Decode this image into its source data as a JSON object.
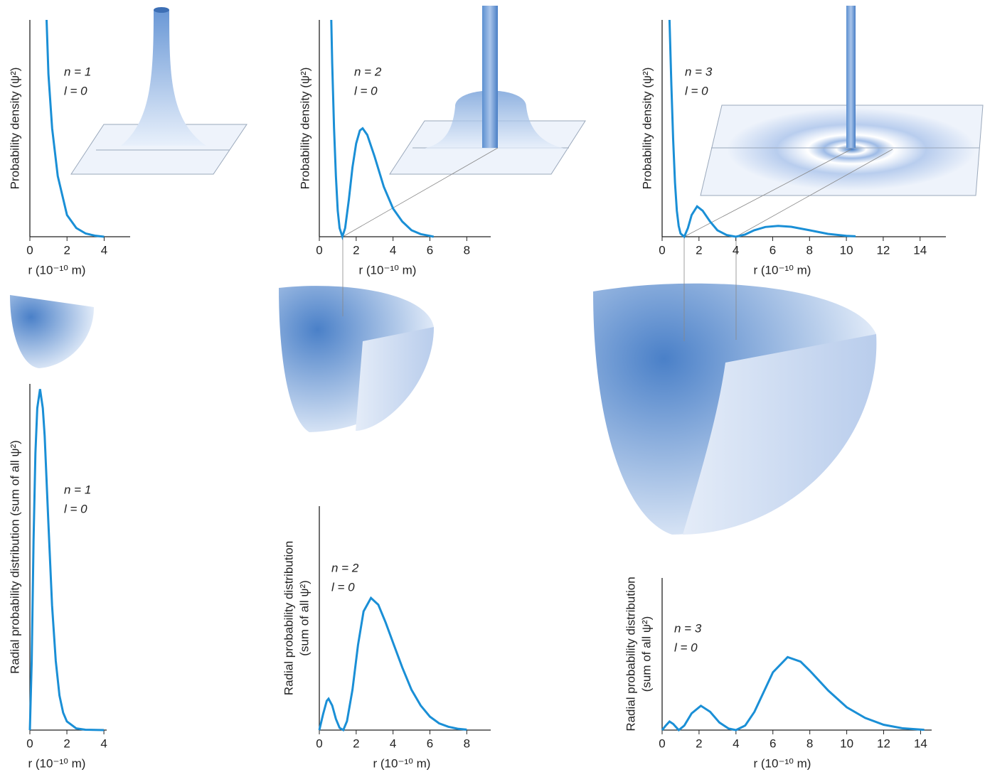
{
  "chart_data": [
    {
      "type": "line",
      "ylabel": [
        "Probability density (ψ²)"
      ],
      "xlabel": "r (10⁻¹⁰ m)",
      "annotations": [
        "n = 1",
        "l = 0"
      ],
      "color": "#1a8fd6",
      "x": [
        0.9,
        1.0,
        1.2,
        1.5,
        2.0,
        2.5,
        3.0,
        3.5,
        4.0
      ],
      "values": [
        1.0,
        0.75,
        0.5,
        0.28,
        0.1,
        0.04,
        0.015,
        0.005,
        0
      ],
      "xlim": [
        0,
        5.4
      ],
      "ylim": [
        0,
        1
      ],
      "xticks": [
        0,
        2,
        4
      ]
    },
    {
      "type": "line",
      "ylabel": [
        "Probability density (ψ²)"
      ],
      "xlabel": "r (10⁻¹⁰ m)",
      "annotations": [
        "n = 2",
        "l = 0"
      ],
      "color": "#1a8fd6",
      "x": [
        0.65,
        0.7,
        0.8,
        0.9,
        1.0,
        1.1,
        1.25,
        1.4,
        1.6,
        1.8,
        2.0,
        2.2,
        2.35,
        2.6,
        3.0,
        3.5,
        4.0,
        4.5,
        5.0,
        5.5,
        6.0,
        6.2
      ],
      "values": [
        1.0,
        0.8,
        0.5,
        0.28,
        0.12,
        0.04,
        0,
        0.04,
        0.17,
        0.32,
        0.43,
        0.49,
        0.5,
        0.47,
        0.37,
        0.23,
        0.13,
        0.07,
        0.03,
        0.012,
        0.004,
        0
      ],
      "xlim": [
        0,
        9.3
      ],
      "ylim": [
        0,
        1
      ],
      "xticks": [
        0,
        2,
        4,
        6,
        8
      ]
    },
    {
      "type": "line",
      "ylabel": [
        "Probability density (ψ²)"
      ],
      "xlabel": "r (10⁻¹⁰ m)",
      "annotations": [
        "n = 3",
        "l = 0"
      ],
      "color": "#1a8fd6",
      "x": [
        0.4,
        0.5,
        0.6,
        0.7,
        0.8,
        0.9,
        1.0,
        1.2,
        1.4,
        1.6,
        1.9,
        2.2,
        2.6,
        3.0,
        3.5,
        4.0,
        4.5,
        5.0,
        5.6,
        6.3,
        7.0,
        8.0,
        9.0,
        10.0,
        10.5
      ],
      "values": [
        1.0,
        0.7,
        0.45,
        0.25,
        0.12,
        0.05,
        0.015,
        0,
        0.04,
        0.1,
        0.14,
        0.12,
        0.07,
        0.03,
        0.008,
        0,
        0.01,
        0.03,
        0.045,
        0.05,
        0.046,
        0.03,
        0.013,
        0.004,
        0.002
      ],
      "xlim": [
        0,
        15.4
      ],
      "ylim": [
        0,
        1
      ],
      "xticks": [
        0,
        2,
        4,
        6,
        8,
        10,
        12,
        14
      ]
    },
    {
      "type": "line",
      "ylabel": [
        "Radial probability distribution (sum of all ψ²)"
      ],
      "xlabel": "r (10⁻¹⁰ m)",
      "annotations": [
        "n = 1",
        "l = 0"
      ],
      "color": "#1a8fd6",
      "x": [
        0,
        0.1,
        0.2,
        0.3,
        0.4,
        0.55,
        0.7,
        0.8,
        1.0,
        1.2,
        1.4,
        1.6,
        1.8,
        2.0,
        2.5,
        3.0,
        4.0
      ],
      "values": [
        0,
        0.2,
        0.55,
        0.8,
        0.93,
        0.985,
        0.93,
        0.85,
        0.6,
        0.36,
        0.2,
        0.1,
        0.05,
        0.025,
        0.005,
        0.001,
        0
      ],
      "xlim": [
        0,
        4.15
      ],
      "ylim": [
        0,
        1
      ],
      "xticks": [
        0,
        2,
        4
      ]
    },
    {
      "type": "line",
      "ylabel": [
        "Radial probability distribution",
        "(sum of all ψ²)"
      ],
      "xlabel": "r (10⁻¹⁰ m)",
      "annotations": [
        "n = 2",
        "l = 0"
      ],
      "color": "#1a8fd6",
      "x": [
        0,
        0.2,
        0.4,
        0.5,
        0.7,
        0.9,
        1.1,
        1.3,
        1.5,
        1.8,
        2.1,
        2.4,
        2.8,
        3.2,
        3.6,
        4.0,
        4.5,
        5.0,
        5.5,
        6.0,
        6.5,
        7.0,
        7.5,
        8.0
      ],
      "values": [
        0,
        0.07,
        0.13,
        0.14,
        0.11,
        0.05,
        0.01,
        0,
        0.04,
        0.18,
        0.38,
        0.53,
        0.59,
        0.56,
        0.48,
        0.39,
        0.28,
        0.18,
        0.11,
        0.06,
        0.03,
        0.015,
        0.006,
        0.002
      ],
      "xlim": [
        0,
        9.3
      ],
      "ylim": [
        0,
        1
      ],
      "xticks": [
        0,
        2,
        4,
        6,
        8
      ]
    },
    {
      "type": "line",
      "ylabel": [
        "Radial probability distribution",
        "(sum of all ψ²)"
      ],
      "xlabel": "r (10⁻¹⁰ m)",
      "annotations": [
        "n = 3",
        "l = 0"
      ],
      "color": "#1a8fd6",
      "x": [
        0,
        0.2,
        0.4,
        0.6,
        0.9,
        1.2,
        1.6,
        2.1,
        2.6,
        3.1,
        3.6,
        4.0,
        4.5,
        5.0,
        5.5,
        6.0,
        6.8,
        7.5,
        8.0,
        9.0,
        10.0,
        11.0,
        12.0,
        13.0,
        14.2
      ],
      "values": [
        0,
        0.03,
        0.056,
        0.04,
        0,
        0.03,
        0.11,
        0.16,
        0.12,
        0.05,
        0.01,
        0,
        0.03,
        0.12,
        0.25,
        0.38,
        0.48,
        0.45,
        0.39,
        0.26,
        0.15,
        0.08,
        0.035,
        0.012,
        0.002
      ],
      "xlim": [
        0,
        14.6
      ],
      "ylim": [
        0,
        1
      ],
      "xticks": [
        0,
        2,
        4,
        6,
        8,
        10,
        12,
        14
      ]
    }
  ]
}
